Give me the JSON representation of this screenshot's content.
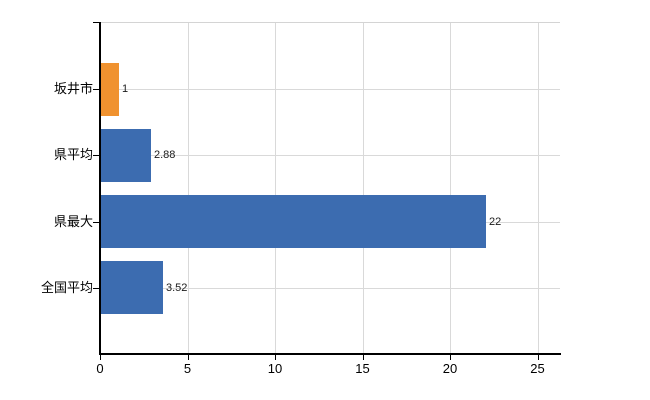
{
  "chart_data": {
    "type": "bar",
    "orientation": "horizontal",
    "title": "",
    "xlabel": "",
    "ylabel": "",
    "categories": [
      "坂井市",
      "県平均",
      "県最大",
      "全国平均"
    ],
    "values": [
      1,
      2.88,
      22,
      3.52
    ],
    "value_labels": [
      "1",
      "2.88",
      "22",
      "3.52"
    ],
    "bar_colors": [
      "#f0922f",
      "#3c6cb0",
      "#3c6cb0",
      "#3c6cb0"
    ],
    "x_tick_values": [
      0,
      5,
      10,
      15,
      20,
      25
    ],
    "x_tick_labels": [
      "0",
      "5",
      "10",
      "15",
      "20",
      "25"
    ],
    "xlim": [
      0,
      26.3
    ],
    "grid": true,
    "legend": "none",
    "colors": {
      "bar_blue": "#3c6cb0",
      "bar_orange": "#f0922f",
      "grid": "#d9d9d9",
      "axis": "#000000",
      "category_text": "#000000",
      "value_text": "#1a1a1a",
      "background": "#ffffff"
    }
  }
}
